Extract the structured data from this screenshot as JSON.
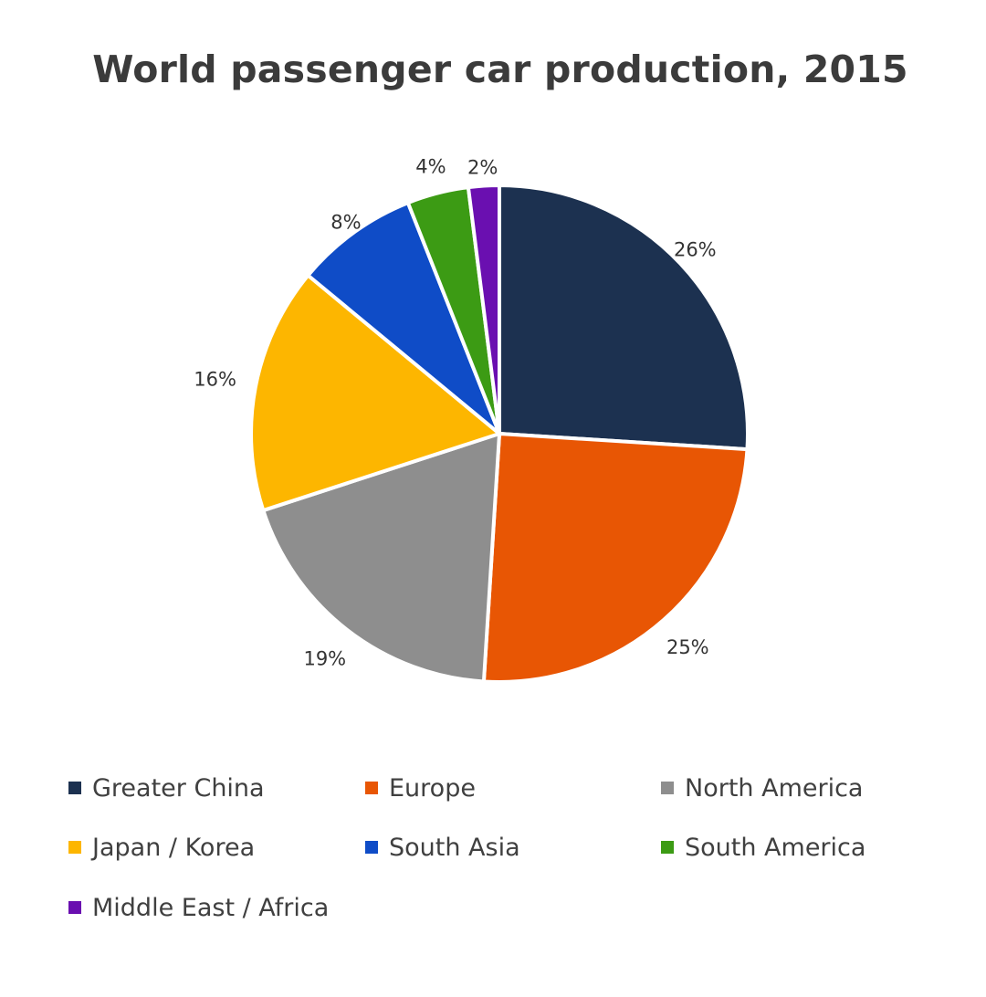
{
  "chart_data": {
    "type": "pie",
    "title": "World passenger car production, 2015",
    "legend_position": "bottom",
    "labels": [
      "Greater China",
      "Europe",
      "North America",
      "Japan / Korea",
      "South Asia",
      "South America",
      "Middle East / Africa"
    ],
    "values": [
      26,
      25,
      19,
      16,
      8,
      4,
      2
    ],
    "value_labels": [
      "26%",
      "25%",
      "19%",
      "16%",
      "8%",
      "4%",
      "2%"
    ],
    "colors": [
      "#1c3150",
      "#e85604",
      "#8e8e8e",
      "#fdb600",
      "#0f4cc7",
      "#3c9b14",
      "#6a0fb0"
    ]
  }
}
